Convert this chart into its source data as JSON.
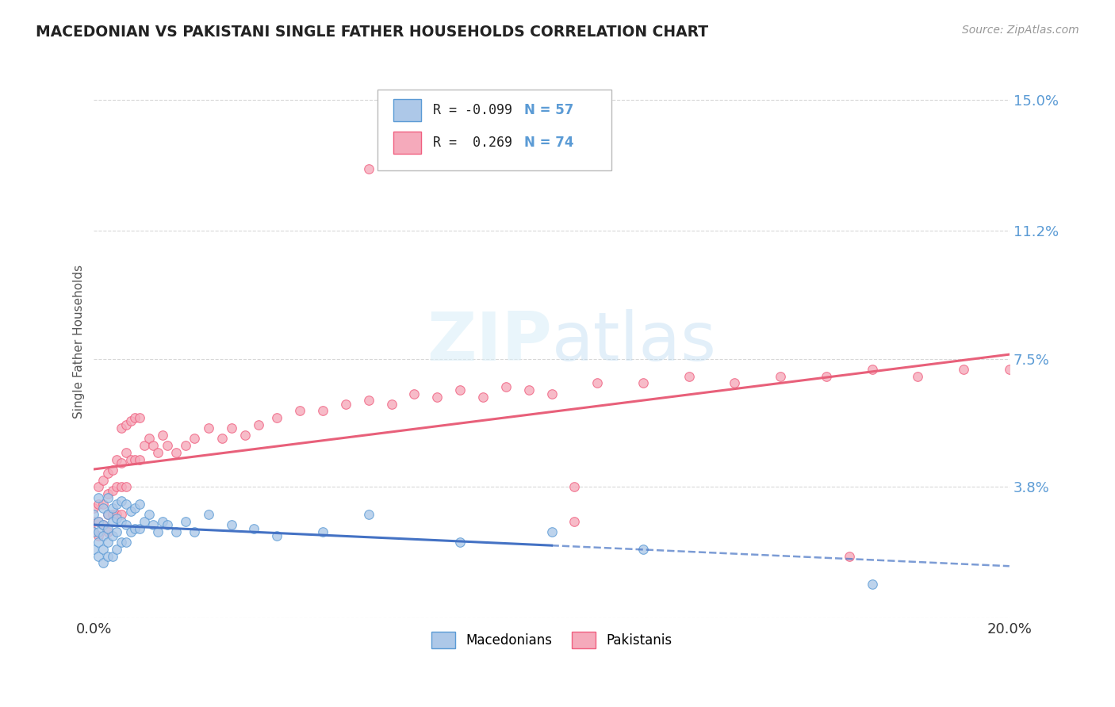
{
  "title": "MACEDONIAN VS PAKISTANI SINGLE FATHER HOUSEHOLDS CORRELATION CHART",
  "source": "Source: ZipAtlas.com",
  "ylabel": "Single Father Households",
  "xlim": [
    0.0,
    0.2
  ],
  "ylim": [
    0.0,
    0.16
  ],
  "yticks": [
    0.0,
    0.038,
    0.075,
    0.112,
    0.15
  ],
  "ytick_labels": [
    "",
    "3.8%",
    "7.5%",
    "11.2%",
    "15.0%"
  ],
  "legend_r_macedonian": "-0.099",
  "legend_n_macedonian": "57",
  "legend_r_pakistani": "0.269",
  "legend_n_pakistani": "74",
  "macedonian_fill": "#adc8e8",
  "pakistani_fill": "#f5aabb",
  "macedonian_edge": "#5b9bd5",
  "pakistani_edge": "#f06080",
  "macedonian_line_color": "#4472c4",
  "pakistani_line_color": "#e8607a",
  "background_color": "#ffffff",
  "grid_color": "#c8c8c8",
  "mac_x": [
    0.0,
    0.0,
    0.0,
    0.001,
    0.001,
    0.001,
    0.001,
    0.001,
    0.002,
    0.002,
    0.002,
    0.002,
    0.002,
    0.003,
    0.003,
    0.003,
    0.003,
    0.003,
    0.004,
    0.004,
    0.004,
    0.004,
    0.005,
    0.005,
    0.005,
    0.005,
    0.006,
    0.006,
    0.006,
    0.007,
    0.007,
    0.007,
    0.008,
    0.008,
    0.009,
    0.009,
    0.01,
    0.01,
    0.011,
    0.012,
    0.013,
    0.014,
    0.015,
    0.016,
    0.018,
    0.02,
    0.022,
    0.025,
    0.03,
    0.035,
    0.04,
    0.05,
    0.06,
    0.08,
    0.1,
    0.12,
    0.17
  ],
  "mac_y": [
    0.03,
    0.025,
    0.02,
    0.035,
    0.028,
    0.025,
    0.022,
    0.018,
    0.032,
    0.027,
    0.024,
    0.02,
    0.016,
    0.035,
    0.03,
    0.026,
    0.022,
    0.018,
    0.032,
    0.028,
    0.024,
    0.018,
    0.033,
    0.029,
    0.025,
    0.02,
    0.034,
    0.028,
    0.022,
    0.033,
    0.027,
    0.022,
    0.031,
    0.025,
    0.032,
    0.026,
    0.033,
    0.026,
    0.028,
    0.03,
    0.027,
    0.025,
    0.028,
    0.027,
    0.025,
    0.028,
    0.025,
    0.03,
    0.027,
    0.026,
    0.024,
    0.025,
    0.03,
    0.022,
    0.025,
    0.02,
    0.01
  ],
  "pak_x": [
    0.0,
    0.0,
    0.0,
    0.001,
    0.001,
    0.001,
    0.001,
    0.002,
    0.002,
    0.002,
    0.003,
    0.003,
    0.003,
    0.003,
    0.004,
    0.004,
    0.004,
    0.005,
    0.005,
    0.005,
    0.006,
    0.006,
    0.006,
    0.006,
    0.007,
    0.007,
    0.007,
    0.008,
    0.008,
    0.009,
    0.009,
    0.01,
    0.01,
    0.011,
    0.012,
    0.013,
    0.014,
    0.015,
    0.016,
    0.018,
    0.02,
    0.022,
    0.025,
    0.028,
    0.03,
    0.033,
    0.036,
    0.04,
    0.045,
    0.05,
    0.055,
    0.06,
    0.065,
    0.07,
    0.075,
    0.08,
    0.085,
    0.09,
    0.095,
    0.1,
    0.11,
    0.12,
    0.13,
    0.14,
    0.15,
    0.16,
    0.17,
    0.18,
    0.19,
    0.2,
    0.06,
    0.105,
    0.105,
    0.165
  ],
  "pak_y": [
    0.032,
    0.028,
    0.025,
    0.038,
    0.033,
    0.028,
    0.024,
    0.04,
    0.033,
    0.027,
    0.042,
    0.036,
    0.03,
    0.025,
    0.043,
    0.037,
    0.03,
    0.046,
    0.038,
    0.03,
    0.055,
    0.045,
    0.038,
    0.03,
    0.056,
    0.048,
    0.038,
    0.057,
    0.046,
    0.058,
    0.046,
    0.058,
    0.046,
    0.05,
    0.052,
    0.05,
    0.048,
    0.053,
    0.05,
    0.048,
    0.05,
    0.052,
    0.055,
    0.052,
    0.055,
    0.053,
    0.056,
    0.058,
    0.06,
    0.06,
    0.062,
    0.063,
    0.062,
    0.065,
    0.064,
    0.066,
    0.064,
    0.067,
    0.066,
    0.065,
    0.068,
    0.068,
    0.07,
    0.068,
    0.07,
    0.07,
    0.072,
    0.07,
    0.072,
    0.072,
    0.13,
    0.038,
    0.028,
    0.018
  ]
}
